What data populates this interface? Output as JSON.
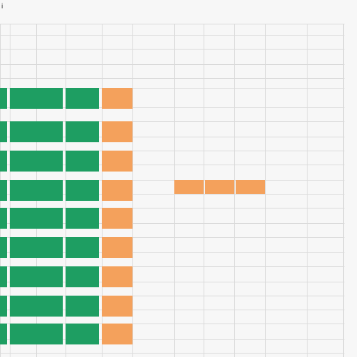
{
  "top": {
    "corner_label": "i"
  },
  "header_row_1": [
    "",
    "",
    "",
    "",
    "",
    "",
    "",
    "",
    "",
    "",
    ""
  ],
  "header_row_2": [
    "",
    "",
    "",
    "",
    "",
    "",
    "",
    "",
    "",
    "",
    ""
  ],
  "header_row_3": [
    "",
    "",
    "",
    "",
    "",
    "",
    "",
    "",
    "",
    "",
    ""
  ],
  "rows": [
    {
      "col_a": "",
      "col_b": "",
      "col_c": "",
      "col_d": "",
      "col_e": "",
      "col_f": "",
      "col_g": ""
    },
    {
      "col_a": "",
      "col_b": "",
      "col_c": "",
      "col_d": "",
      "col_e": "",
      "col_f": "",
      "col_g": ""
    },
    {
      "col_a": "",
      "col_b": "",
      "col_c": "",
      "col_d": "",
      "col_e": "",
      "col_f": "",
      "col_g": ""
    },
    {
      "col_a": "",
      "col_b": "",
      "col_c": "",
      "col_d": "",
      "col_e": "",
      "col_f": "",
      "col_g": ""
    },
    {
      "col_a": "",
      "col_b": "",
      "col_c": "",
      "col_d": "",
      "col_e": "",
      "col_f": "",
      "col_g": ""
    },
    {
      "col_a": "",
      "col_b": "",
      "col_c": "",
      "col_d": "",
      "col_e": "",
      "col_f": "",
      "col_g": ""
    },
    {
      "col_a": "",
      "col_b": "",
      "col_c": "",
      "col_d": "",
      "col_e": "",
      "col_f": "",
      "col_g": ""
    },
    {
      "col_a": "",
      "col_b": "",
      "col_c": "",
      "col_d": "",
      "col_e": "",
      "col_f": "",
      "col_g": ""
    },
    {
      "col_a": "",
      "col_b": "",
      "col_c": "",
      "col_d": "",
      "col_e": "",
      "col_f": "",
      "col_g": ""
    }
  ],
  "colors": {
    "green": "#1e9e62",
    "orange": "#f4a15c",
    "grid": "#d9d9d9"
  }
}
